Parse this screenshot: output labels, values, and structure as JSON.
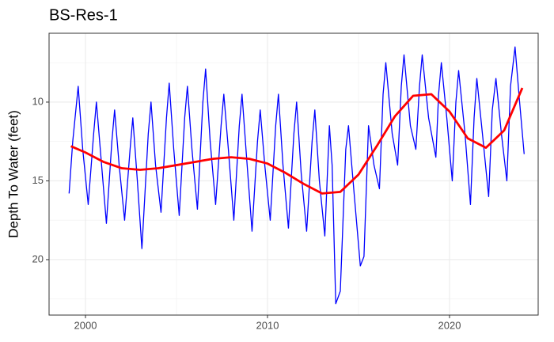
{
  "chart_data": {
    "type": "line",
    "title": "BS-Res-1",
    "y_label": "Depth To Water (feet)",
    "xlim": [
      1998.0,
      2024.87
    ],
    "xticks": [
      2000,
      2010,
      2020
    ],
    "x_minor_ticks": [
      2005,
      2015
    ],
    "ylim": [
      5.63,
      23.52
    ],
    "y_reversed": true,
    "yticks": [
      10,
      15,
      20
    ],
    "y_minor_ticks": [
      7.5,
      12.5,
      17.5,
      22.5
    ],
    "grid": true,
    "series": [
      {
        "color": "#0000ff",
        "x": [
          1999.1,
          1999.3,
          1999.6,
          1999.85,
          2000.15,
          2000.45,
          2000.6,
          2000.85,
          2001.15,
          2001.45,
          2001.6,
          2001.85,
          2002.15,
          2002.45,
          2002.6,
          2002.85,
          2003.1,
          2003.45,
          2003.6,
          2003.85,
          2004.15,
          2004.45,
          2004.6,
          2004.85,
          2005.15,
          2005.45,
          2005.6,
          2005.85,
          2006.15,
          2006.45,
          2006.6,
          2006.85,
          2007.15,
          2007.45,
          2007.6,
          2007.85,
          2008.15,
          2008.45,
          2008.6,
          2008.85,
          2009.15,
          2009.45,
          2009.6,
          2009.85,
          2010.15,
          2010.45,
          2010.6,
          2010.85,
          2011.15,
          2011.45,
          2011.6,
          2011.85,
          2012.15,
          2012.45,
          2012.6,
          2012.85,
          2013.15,
          2013.4,
          2013.55,
          2013.75,
          2014.0,
          2014.3,
          2014.45,
          2014.7,
          2015.1,
          2015.3,
          2015.55,
          2015.85,
          2016.15,
          2016.35,
          2016.5,
          2016.85,
          2017.15,
          2017.35,
          2017.5,
          2017.85,
          2018.15,
          2018.35,
          2018.5,
          2018.85,
          2019.25,
          2019.4,
          2019.55,
          2019.85,
          2020.15,
          2020.35,
          2020.5,
          2020.85,
          2021.15,
          2021.35,
          2021.5,
          2021.85,
          2022.15,
          2022.35,
          2022.55,
          2022.85,
          2023.15,
          2023.35,
          2023.6,
          2023.85,
          2024.1
        ],
        "values": [
          15.8,
          12.5,
          9.0,
          13.0,
          16.5,
          12,
          10.0,
          13.5,
          17.7,
          12.5,
          10.5,
          14,
          17.5,
          13,
          11.0,
          15,
          19.3,
          12,
          10.0,
          14,
          17.0,
          11,
          8.8,
          13,
          17.2,
          11,
          9.0,
          13,
          16.8,
          10,
          7.9,
          12.5,
          16.5,
          11.5,
          9.5,
          13,
          17.5,
          11.5,
          9.5,
          13.5,
          18.2,
          12.5,
          10.5,
          14,
          17.5,
          11.5,
          9.5,
          14,
          18.0,
          12,
          10.0,
          14.5,
          18.2,
          12.5,
          10.5,
          15,
          18.5,
          11.5,
          14,
          22.8,
          22,
          13,
          11.5,
          15,
          20.4,
          19.8,
          11.5,
          14,
          15.5,
          9.5,
          7.5,
          12,
          14.0,
          9,
          7.0,
          11.5,
          13.0,
          9,
          7.0,
          11,
          13.5,
          9.5,
          7.5,
          11,
          15.0,
          10,
          8.0,
          12,
          16.5,
          11,
          8.5,
          12.5,
          16.0,
          10.5,
          8.5,
          12,
          15.0,
          9,
          6.5,
          10,
          13.3
        ]
      },
      {
        "color": "#ff0000",
        "x": [
          1999.2,
          2000,
          2001,
          2002,
          2003,
          2004,
          2005,
          2006,
          2007,
          2008,
          2009,
          2010,
          2011,
          2012,
          2013,
          2014,
          2015,
          2016,
          2017,
          2018,
          2019,
          2020,
          2021,
          2022,
          2023,
          2024
        ],
        "values": [
          12.8,
          13.2,
          13.8,
          14.2,
          14.3,
          14.2,
          14.0,
          13.8,
          13.6,
          13.5,
          13.6,
          13.9,
          14.5,
          15.2,
          15.8,
          15.7,
          14.6,
          12.8,
          10.9,
          9.6,
          9.5,
          10.6,
          12.3,
          12.9,
          11.8,
          9.1
        ]
      }
    ]
  }
}
